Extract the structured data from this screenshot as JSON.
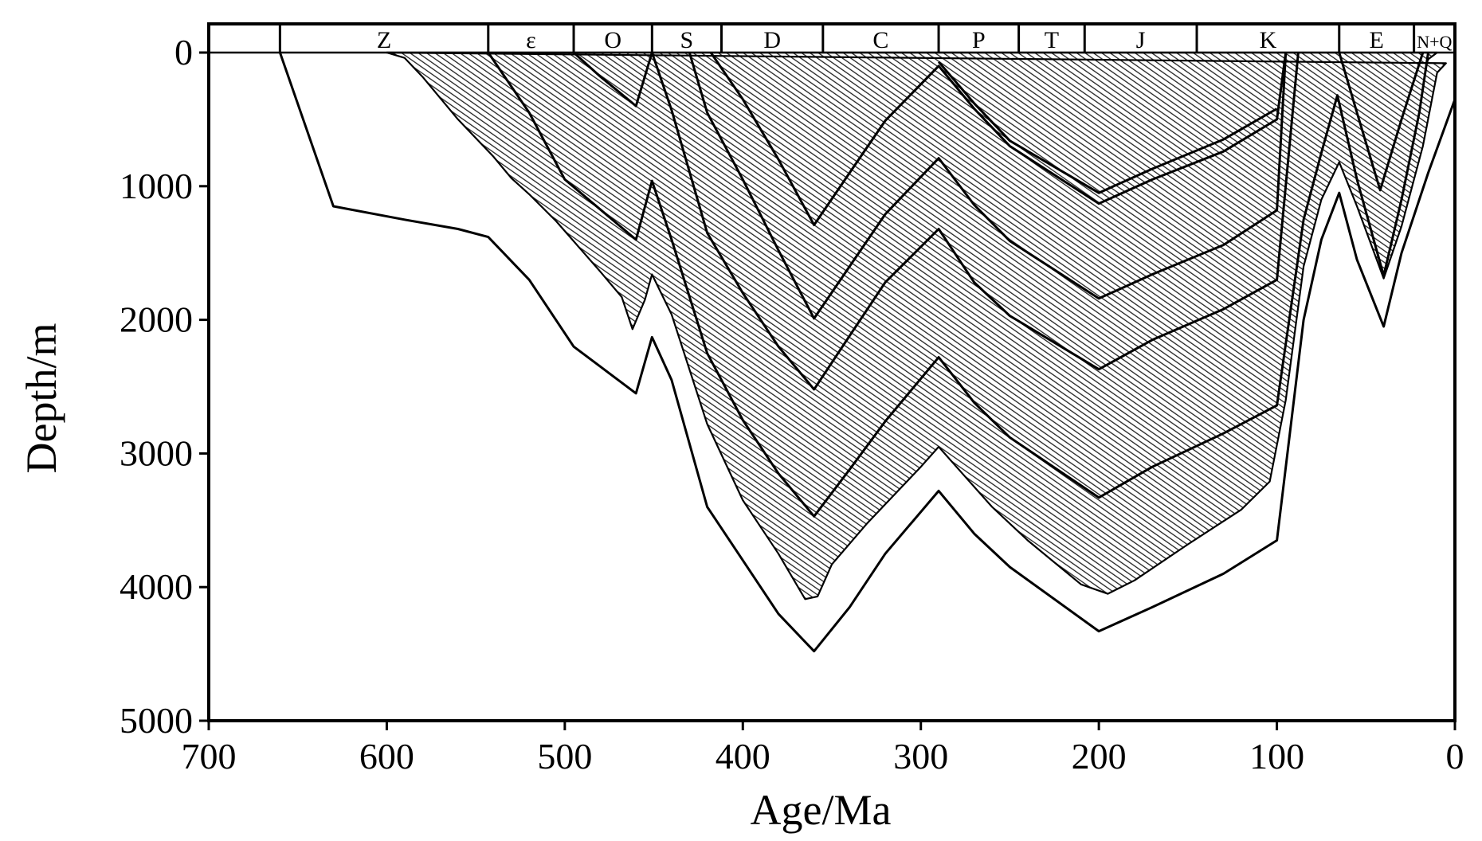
{
  "chart_data": {
    "type": "line",
    "title": "",
    "xlabel": "Age/Ma",
    "ylabel": "Depth/m",
    "xlim": [
      700,
      0
    ],
    "ylim": [
      5000,
      0
    ],
    "x_ticks": [
      "700",
      "600",
      "500",
      "400",
      "300",
      "200",
      "100",
      "0"
    ],
    "y_ticks": [
      "0",
      "1000",
      "2000",
      "3000",
      "4000",
      "5000"
    ],
    "grid": false,
    "legend": "none",
    "periods": [
      {
        "label": "Z",
        "start": 660,
        "end": 543
      },
      {
        "label": "ε",
        "start": 543,
        "end": 495
      },
      {
        "label": "O",
        "start": 495,
        "end": 451
      },
      {
        "label": "S",
        "start": 451,
        "end": 412
      },
      {
        "label": "D",
        "start": 412,
        "end": 355
      },
      {
        "label": "C",
        "start": 355,
        "end": 290
      },
      {
        "label": "P",
        "start": 290,
        "end": 245
      },
      {
        "label": "T",
        "start": 245,
        "end": 208
      },
      {
        "label": "J",
        "start": 208,
        "end": 145
      },
      {
        "label": "K",
        "start": 145,
        "end": 65
      },
      {
        "label": "E",
        "start": 65,
        "end": 23
      },
      {
        "label": "N+Q",
        "start": 23,
        "end": 0
      }
    ],
    "series": [
      {
        "points": [
          [
            660,
            0
          ],
          [
            630,
            1150
          ],
          [
            590,
            1250
          ],
          [
            560,
            1320
          ],
          [
            543,
            1380
          ],
          [
            520,
            1700
          ],
          [
            495,
            2200
          ],
          [
            480,
            2350
          ],
          [
            460,
            2550
          ],
          [
            451,
            2130
          ],
          [
            440,
            2450
          ],
          [
            420,
            3400
          ],
          [
            400,
            3800
          ],
          [
            380,
            4200
          ],
          [
            360,
            4480
          ],
          [
            340,
            4150
          ],
          [
            320,
            3750
          ],
          [
            290,
            3280
          ],
          [
            270,
            3600
          ],
          [
            250,
            3850
          ],
          [
            200,
            4330
          ],
          [
            170,
            4150
          ],
          [
            130,
            3900
          ],
          [
            100,
            3650
          ],
          [
            85,
            2000
          ],
          [
            75,
            1400
          ],
          [
            65,
            1050
          ],
          [
            55,
            1550
          ],
          [
            40,
            2050
          ],
          [
            30,
            1500
          ],
          [
            15,
            900
          ],
          [
            0,
            350
          ]
        ]
      },
      {
        "points": [
          [
            543,
            0
          ],
          [
            520,
            450
          ],
          [
            500,
            950
          ],
          [
            460,
            1400
          ],
          [
            451,
            960
          ],
          [
            440,
            1400
          ],
          [
            420,
            2250
          ],
          [
            400,
            2750
          ],
          [
            380,
            3150
          ],
          [
            360,
            3470
          ],
          [
            340,
            3120
          ],
          [
            320,
            2760
          ],
          [
            290,
            2280
          ],
          [
            270,
            2620
          ],
          [
            250,
            2880
          ],
          [
            200,
            3330
          ],
          [
            170,
            3100
          ],
          [
            130,
            2850
          ],
          [
            100,
            2640
          ],
          [
            85,
            1250
          ],
          [
            75,
            750
          ],
          [
            66,
            320
          ],
          [
            55,
            950
          ],
          [
            40,
            1670
          ],
          [
            30,
            1100
          ],
          [
            20,
            450
          ],
          [
            15,
            0
          ]
        ]
      },
      {
        "points": [
          [
            495,
            0
          ],
          [
            480,
            180
          ],
          [
            460,
            400
          ],
          [
            451,
            0
          ],
          [
            440,
            430
          ],
          [
            420,
            1350
          ],
          [
            400,
            1800
          ],
          [
            380,
            2200
          ],
          [
            360,
            2520
          ],
          [
            340,
            2120
          ],
          [
            320,
            1720
          ],
          [
            290,
            1320
          ],
          [
            270,
            1720
          ],
          [
            250,
            1970
          ],
          [
            200,
            2370
          ],
          [
            170,
            2150
          ],
          [
            130,
            1920
          ],
          [
            100,
            1700
          ],
          [
            88,
            0
          ]
        ]
      },
      {
        "points": [
          [
            430,
            0
          ],
          [
            420,
            450
          ],
          [
            400,
            950
          ],
          [
            380,
            1480
          ],
          [
            360,
            1990
          ],
          [
            340,
            1600
          ],
          [
            320,
            1210
          ],
          [
            290,
            790
          ],
          [
            270,
            1140
          ],
          [
            250,
            1410
          ],
          [
            200,
            1840
          ],
          [
            170,
            1660
          ],
          [
            130,
            1440
          ],
          [
            100,
            1180
          ],
          [
            95,
            0
          ]
        ]
      },
      {
        "points": [
          [
            418,
            0
          ],
          [
            400,
            350
          ],
          [
            380,
            800
          ],
          [
            360,
            1290
          ],
          [
            340,
            900
          ],
          [
            320,
            510
          ],
          [
            290,
            100
          ],
          [
            270,
            420
          ],
          [
            250,
            700
          ],
          [
            200,
            1130
          ],
          [
            170,
            950
          ],
          [
            130,
            740
          ],
          [
            100,
            500
          ],
          [
            95,
            0
          ]
        ]
      },
      {
        "points": [
          [
            290,
            70
          ],
          [
            270,
            380
          ],
          [
            250,
            660
          ],
          [
            200,
            1050
          ],
          [
            170,
            870
          ],
          [
            130,
            650
          ],
          [
            100,
            420
          ]
        ]
      },
      {
        "points": [
          [
            65,
            0
          ],
          [
            55,
            450
          ],
          [
            42,
            1030
          ],
          [
            30,
            500
          ],
          [
            18,
            0
          ]
        ]
      }
    ],
    "hatched_bands": [
      {
        "top": [
          [
            600,
            0
          ],
          [
            585,
            40
          ],
          [
            570,
            260
          ],
          [
            550,
            540
          ],
          [
            525,
            930
          ],
          [
            515,
            960
          ],
          [
            500,
            1150
          ],
          [
            470,
            1560
          ],
          [
            462,
            1700
          ],
          [
            451,
            1300
          ],
          [
            440,
            1650
          ],
          [
            420,
            2500
          ],
          [
            400,
            3020
          ],
          [
            380,
            3380
          ],
          [
            360,
            3700
          ],
          [
            350,
            3500
          ],
          [
            330,
            3200
          ],
          [
            300,
            2700
          ],
          [
            290,
            2600
          ],
          [
            280,
            2700
          ],
          [
            260,
            3000
          ],
          [
            240,
            3270
          ],
          [
            200,
            3710
          ],
          [
            180,
            3600
          ],
          [
            150,
            3340
          ],
          [
            120,
            3120
          ],
          [
            100,
            2860
          ],
          [
            90,
            1800
          ],
          [
            80,
            1100
          ],
          [
            70,
            700
          ],
          [
            65,
            330
          ],
          [
            55,
            900
          ],
          [
            42,
            1270
          ],
          [
            30,
            700
          ],
          [
            20,
            250
          ],
          [
            15,
            50
          ],
          [
            10,
            0
          ]
        ]
      },
      {
        "top": [
          [
            600,
            0
          ],
          [
            590,
            40
          ],
          [
            580,
            180
          ],
          [
            560,
            500
          ],
          [
            540,
            780
          ],
          [
            530,
            940
          ],
          [
            520,
            1060
          ],
          [
            505,
            1260
          ],
          [
            480,
            1640
          ],
          [
            468,
            1830
          ],
          [
            462,
            2070
          ],
          [
            455,
            1850
          ],
          [
            451,
            1660
          ],
          [
            440,
            1960
          ],
          [
            420,
            2780
          ],
          [
            400,
            3350
          ],
          [
            380,
            3750
          ],
          [
            365,
            4090
          ],
          [
            358,
            4070
          ],
          [
            350,
            3830
          ],
          [
            330,
            3520
          ],
          [
            300,
            3100
          ],
          [
            290,
            2950
          ],
          [
            280,
            3100
          ],
          [
            260,
            3400
          ],
          [
            240,
            3650
          ],
          [
            210,
            3980
          ],
          [
            195,
            4050
          ],
          [
            180,
            3950
          ],
          [
            150,
            3680
          ],
          [
            120,
            3420
          ],
          [
            104,
            3210
          ],
          [
            95,
            2600
          ],
          [
            85,
            1600
          ],
          [
            75,
            1100
          ],
          [
            65,
            820
          ],
          [
            55,
            1150
          ],
          [
            40,
            1690
          ],
          [
            30,
            1300
          ],
          [
            18,
            700
          ],
          [
            10,
            150
          ],
          [
            5,
            80
          ]
        ]
      }
    ]
  }
}
